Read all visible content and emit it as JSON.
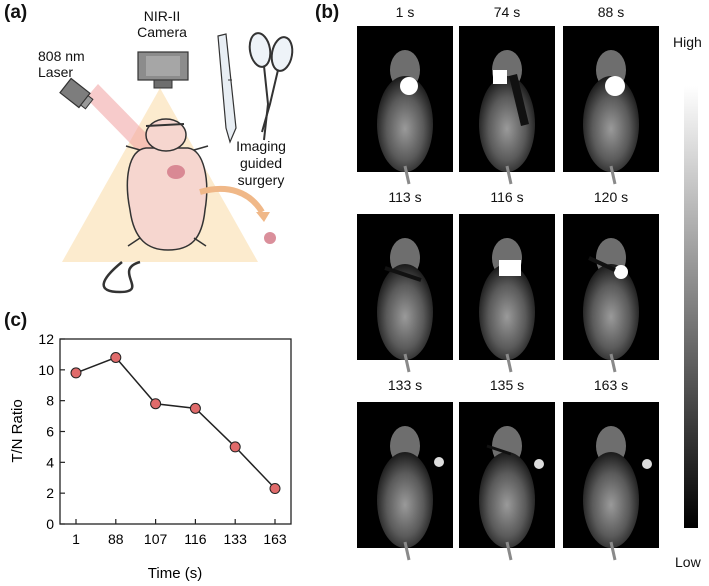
{
  "panels": {
    "a": {
      "label": "(a)",
      "laser_label": "808 nm\nLaser",
      "camera_label": "NIR-II\nCamera",
      "surgery_label": "Imaging\nguided\nsurgery"
    },
    "b": {
      "label": "(b)",
      "timepoints": [
        "1 s",
        "74 s",
        "88 s",
        "113 s",
        "116 s",
        "120 s",
        "133 s",
        "135 s",
        "163 s"
      ],
      "colorbar": {
        "high_label": "High",
        "low_label": "Low"
      }
    },
    "c": {
      "label": "(c)"
    }
  },
  "chart_data": {
    "type": "line",
    "categories": [
      "1",
      "88",
      "107",
      "116",
      "133",
      "163"
    ],
    "values": [
      9.8,
      10.8,
      7.8,
      7.5,
      5.0,
      2.3
    ],
    "xlabel": "Time (s)",
    "ylabel": "T/N Ratio",
    "ylim": [
      0,
      12
    ],
    "yticks": [
      0,
      2,
      4,
      6,
      8,
      10,
      12
    ],
    "marker_color": "#e06b6b",
    "line_color": "#222222"
  }
}
